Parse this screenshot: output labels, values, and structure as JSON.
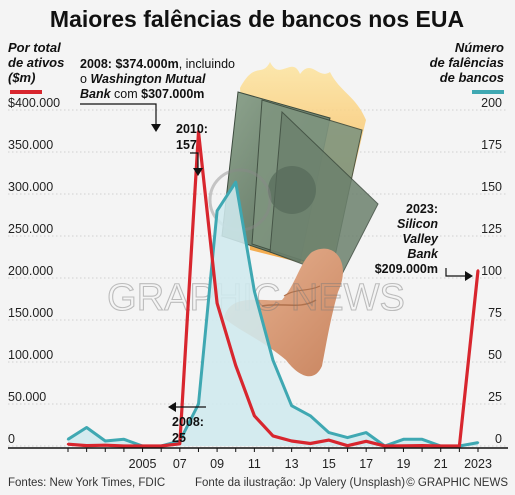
{
  "title": "Maiores falências de bancos nos EUA",
  "left_axis_title": [
    "Por total",
    "de ativos",
    "($m)"
  ],
  "right_axis_title": [
    "Número",
    "de falências",
    "de bancos"
  ],
  "footer": {
    "source": "Fontes: New York Times, FDIC",
    "photo_credit": "Fonte da ilustração: Jp Valery (Unsplash)",
    "brand": "© GRAPHIC NEWS"
  },
  "watermark": "GRAPHIC NEWS",
  "annotations": {
    "a2008_assets": {
      "line1_bold": "2008: $374.000m",
      "line1_rest": ", incluindo",
      "line2_pre": "o ",
      "line2_italic": "Washington Mutual",
      "line3_italic": "Bank",
      "line3_rest": " com ",
      "line3_bold": "$307.000m"
    },
    "a2010": {
      "line1": "2010:",
      "line2": "157"
    },
    "a2008_count": {
      "line1": "2008:",
      "line2": "25"
    },
    "a2023": {
      "line1": "2023:",
      "line2": "Silicon",
      "line3": "Valley",
      "line4": "Bank",
      "line5": "$209.000m"
    }
  },
  "colors": {
    "assets": "#d8262e",
    "count": "#3fa8b2",
    "count_fill": "#cfe9ee"
  },
  "chart_data": {
    "type": "line",
    "x": [
      2001,
      2002,
      2003,
      2004,
      2005,
      2006,
      2007,
      2008,
      2009,
      2010,
      2011,
      2012,
      2013,
      2014,
      2015,
      2016,
      2017,
      2018,
      2019,
      2020,
      2021,
      2022,
      2023
    ],
    "x_tick_labels": [
      "2005",
      "07",
      "09",
      "11",
      "13",
      "15",
      "17",
      "19",
      "21",
      "2023"
    ],
    "x_tick_values": [
      2005,
      2007,
      2009,
      2011,
      2013,
      2015,
      2017,
      2019,
      2021,
      2023
    ],
    "series": [
      {
        "axis": "left",
        "values": [
          2200,
          500,
          1000,
          0,
          0,
          0,
          2600,
          374000,
          170000,
          96000,
          36000,
          12000,
          6000,
          3000,
          7000,
          300,
          5600,
          0,
          200,
          500,
          0,
          0,
          209000
        ]
      },
      {
        "axis": "right",
        "values": [
          4,
          11,
          3,
          4,
          0,
          0,
          3,
          25,
          140,
          157,
          92,
          51,
          24,
          18,
          8,
          5,
          8,
          0,
          4,
          4,
          0,
          0,
          2
        ]
      }
    ],
    "left_axis": {
      "ylim": [
        0,
        400000
      ],
      "ticks": [
        0,
        50000,
        100000,
        150000,
        200000,
        250000,
        300000,
        350000,
        400000
      ],
      "tick_labels": [
        "0",
        "50.000",
        "100.000",
        "150.000",
        "200.000",
        "250.000",
        "300.000",
        "350.000",
        "$400.000"
      ]
    },
    "right_axis": {
      "ylim": [
        0,
        200
      ],
      "ticks": [
        0,
        25,
        50,
        75,
        100,
        125,
        150,
        175,
        200
      ],
      "tick_labels": [
        "0",
        "25",
        "50",
        "75",
        "100",
        "125",
        "150",
        "175",
        "200"
      ]
    },
    "grid": "horizontal"
  }
}
